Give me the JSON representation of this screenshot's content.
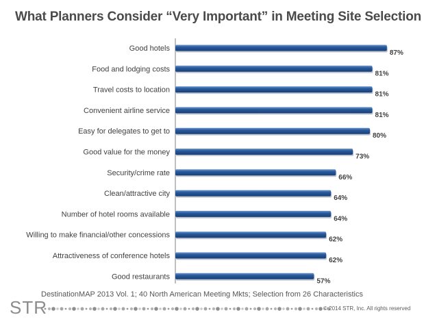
{
  "title": "What Planners Consider “Very Important” in Meeting Site Selection",
  "source_note": "DestinationMAP 2013 Vol. 1;  40 North American Meeting  Mkts;  Selection from 26 Characteristics",
  "copyright": "© 2014 STR, Inc. All rights reserved",
  "logo_text": "STR",
  "colors": {
    "bar": "#1f4e8c",
    "bar_highlight": "#5b88c6",
    "title": "#4a4a4a",
    "label": "#404040"
  },
  "chart_data": {
    "type": "bar",
    "orientation": "horizontal",
    "title": "What Planners Consider “Very Important” in Meeting Site Selection",
    "xlabel": "",
    "ylabel": "",
    "xlim": [
      0,
      100
    ],
    "grid": false,
    "categories": [
      "Good hotels",
      "Food and lodging costs",
      "Travel costs to location",
      "Convenient airline service",
      "Easy for delegates to get to",
      "Good value for the money",
      "Security/crime rate",
      "Clean/attractive city",
      "Number of hotel rooms available",
      "Willing to make financial/other concessions",
      "Attractiveness of conference hotels",
      "Good restaurants"
    ],
    "values": [
      87,
      81,
      81,
      81,
      80,
      73,
      66,
      64,
      64,
      62,
      62,
      57
    ],
    "value_labels": [
      "87%",
      "81%",
      "81%",
      "81%",
      "80%",
      "73%",
      "66%",
      "64%",
      "64%",
      "62%",
      "62%",
      "57%"
    ]
  }
}
